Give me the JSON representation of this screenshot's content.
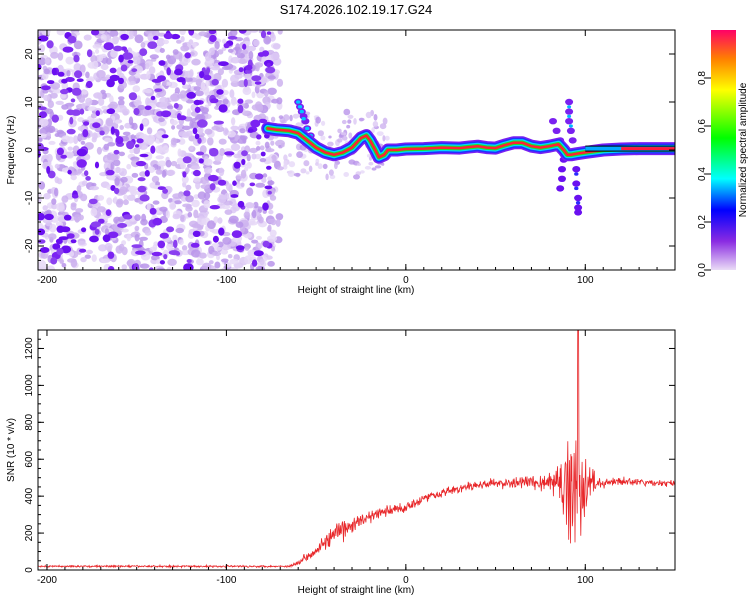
{
  "title": "S174.2026.102.19.17.G24",
  "chart_data": [
    {
      "type": "heatmap",
      "name": "spectrogram",
      "xlabel": "Height of straight line (km)",
      "ylabel": "Frequency (Hz)",
      "xlim": [
        -205,
        150
      ],
      "ylim": [
        -25,
        25
      ],
      "xticks": [
        -200,
        -100,
        0,
        100
      ],
      "yticks": [
        -20,
        -10,
        0,
        10,
        20
      ],
      "ridge": {
        "x": [
          -77,
          -72,
          -65,
          -60,
          -55,
          -50,
          -45,
          -40,
          -35,
          -30,
          -25,
          -22,
          -20,
          -17,
          -15,
          -12,
          -10,
          -5,
          0,
          10,
          20,
          30,
          35,
          40,
          45,
          50,
          55,
          60,
          65,
          70,
          75,
          80,
          85,
          88,
          90,
          92,
          95,
          100,
          110,
          120,
          130,
          140,
          150
        ],
        "y": [
          4.5,
          4.2,
          4.0,
          3.5,
          2.0,
          0.5,
          -0.5,
          -1.0,
          -0.5,
          0.5,
          2.5,
          3.0,
          2.0,
          0.0,
          -1.5,
          -1.0,
          0.0,
          0.0,
          0.2,
          0.3,
          0.5,
          0.4,
          0.6,
          0.8,
          0.5,
          0.4,
          1.0,
          1.5,
          1.5,
          0.8,
          0.5,
          0.8,
          1.2,
          0.0,
          -1.0,
          -1.0,
          -0.8,
          -0.5,
          0.0,
          0.2,
          0.3,
          0.3,
          0.3
        ]
      },
      "colorbar": {
        "label": "Normalized spectral amplitude",
        "min": 0.0,
        "max": 1.0,
        "ticks": [
          "0.0",
          "0.2",
          "0.4",
          "0.6",
          "0.8"
        ]
      }
    },
    {
      "type": "line",
      "name": "snr",
      "xlabel": "Height of straight line (km)",
      "ylabel": "SNR (10 * v/v)",
      "xlim": [
        -205,
        150
      ],
      "ylim": [
        0,
        1300
      ],
      "xticks": [
        -200,
        -100,
        0,
        100
      ],
      "yticks": [
        0,
        200,
        400,
        600,
        800,
        1000,
        1200
      ],
      "color": "#e8272a",
      "envelope": {
        "x": [
          -205,
          -65,
          -60,
          -50,
          -40,
          -30,
          -20,
          -10,
          0,
          10,
          20,
          30,
          40,
          50,
          60,
          70,
          80,
          85,
          90,
          95,
          100,
          110,
          120,
          130,
          140,
          150
        ],
        "mean": [
          20,
          20,
          40,
          110,
          190,
          240,
          290,
          320,
          340,
          390,
          420,
          440,
          460,
          470,
          470,
          480,
          470,
          470,
          450,
          450,
          470,
          470,
          480,
          475,
          470,
          470
        ],
        "noise": [
          6,
          6,
          15,
          40,
          60,
          60,
          45,
          40,
          35,
          30,
          28,
          28,
          28,
          28,
          32,
          45,
          70,
          120,
          300,
          420,
          160,
          30,
          25,
          22,
          20,
          20
        ]
      },
      "peak": {
        "x": 96,
        "y": 1300
      }
    }
  ]
}
